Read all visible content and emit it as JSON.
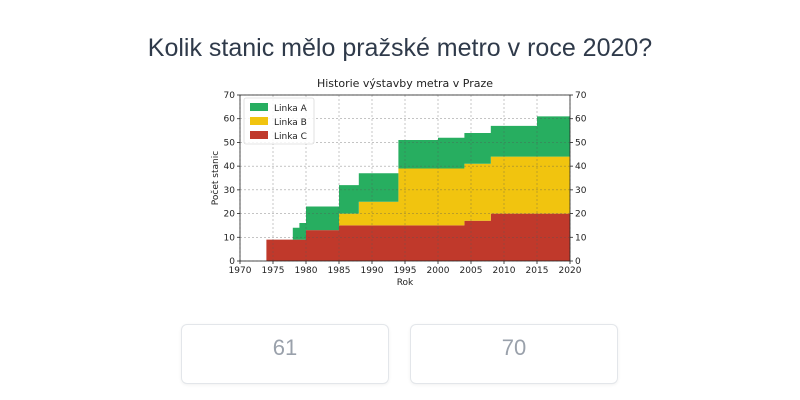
{
  "question": "Kolik stanic mělo pražské metro v roce 2020?",
  "answers": [
    {
      "label": "61"
    },
    {
      "label": "70"
    }
  ],
  "chart_data": {
    "type": "area",
    "title": "Historie výstavby metra v Praze",
    "xlabel": "Rok",
    "ylabel": "Počet stanic",
    "xlim": [
      1970,
      2020
    ],
    "ylim": [
      0,
      70
    ],
    "xticks": [
      1970,
      1975,
      1980,
      1985,
      1990,
      1995,
      2000,
      2005,
      2010,
      2015,
      2020
    ],
    "yticks": [
      0,
      10,
      20,
      30,
      40,
      50,
      60,
      70
    ],
    "stacked": true,
    "grid": true,
    "legend_position": "top-left",
    "x": [
      1973,
      1974,
      1975,
      1976,
      1977,
      1978,
      1979,
      1980,
      1981,
      1982,
      1983,
      1984,
      1985,
      1986,
      1987,
      1988,
      1989,
      1990,
      1991,
      1992,
      1993,
      1994,
      1995,
      1996,
      1997,
      1998,
      1999,
      2000,
      2001,
      2002,
      2003,
      2004,
      2005,
      2006,
      2007,
      2008,
      2009,
      2010,
      2011,
      2012,
      2013,
      2014,
      2015,
      2016,
      2017,
      2018,
      2019,
      2020
    ],
    "series": [
      {
        "name": "Linka C",
        "color": "#c0392b",
        "values": [
          0,
          9,
          9,
          9,
          9,
          9,
          9,
          13,
          13,
          13,
          13,
          13,
          15,
          15,
          15,
          15,
          15,
          15,
          15,
          15,
          15,
          15,
          15,
          15,
          15,
          15,
          15,
          15,
          15,
          15,
          15,
          17,
          17,
          17,
          17,
          20,
          20,
          20,
          20,
          20,
          20,
          20,
          20,
          20,
          20,
          20,
          20,
          20
        ]
      },
      {
        "name": "Linka B",
        "color": "#f1c40f",
        "values": [
          0,
          0,
          0,
          0,
          0,
          0,
          0,
          0,
          0,
          0,
          0,
          0,
          5,
          5,
          5,
          10,
          10,
          10,
          10,
          10,
          10,
          24,
          24,
          24,
          24,
          24,
          24,
          24,
          24,
          24,
          24,
          24,
          24,
          24,
          24,
          24,
          24,
          24,
          24,
          24,
          24,
          24,
          24,
          24,
          24,
          24,
          24,
          24
        ]
      },
      {
        "name": "Linka A",
        "color": "#27ae60",
        "values": [
          0,
          0,
          0,
          0,
          0,
          5,
          7,
          10,
          10,
          10,
          10,
          10,
          12,
          12,
          12,
          12,
          12,
          12,
          12,
          12,
          12,
          12,
          12,
          12,
          12,
          12,
          12,
          13,
          13,
          13,
          13,
          13,
          13,
          13,
          13,
          13,
          13,
          13,
          13,
          13,
          13,
          13,
          17,
          17,
          17,
          17,
          17,
          17
        ]
      }
    ],
    "legend_order": [
      "Linka A",
      "Linka B",
      "Linka C"
    ]
  }
}
